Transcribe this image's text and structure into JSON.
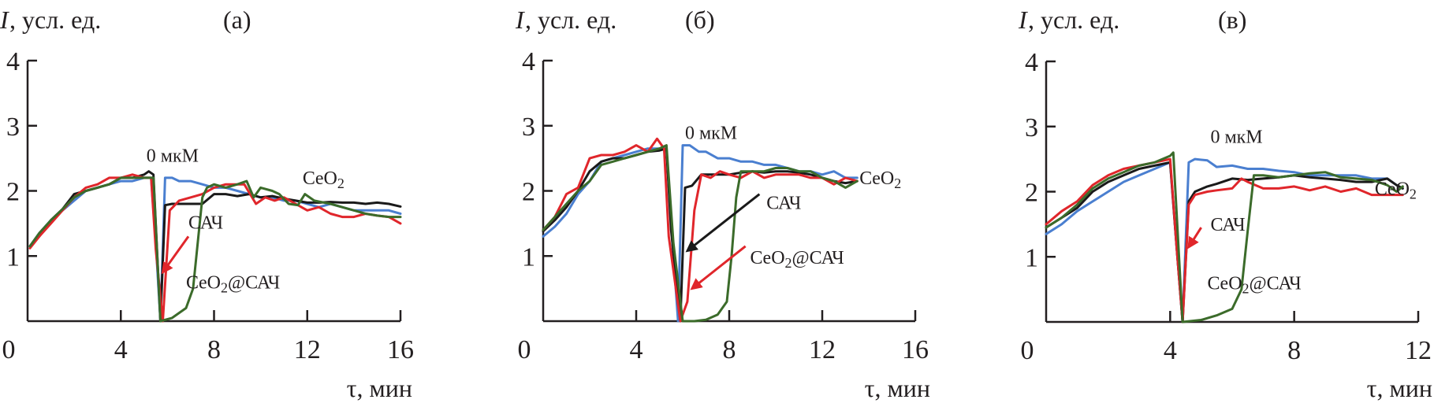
{
  "colors": {
    "blue": "#4a7fd0",
    "black": "#1a1a1a",
    "red": "#e0262b",
    "green": "#3b6b2a",
    "axis": "#231f20"
  },
  "chart_data": [
    {
      "type": "line",
      "panel_label": "(а)",
      "ylabel_italic": "I",
      "ylabel": ", усл. ед.",
      "xlabel": "τ, мин",
      "xlim": [
        0,
        16
      ],
      "ylim": [
        0,
        4
      ],
      "xticks": [
        0,
        4,
        8,
        12,
        16
      ],
      "yticks": [
        1,
        2,
        3,
        4
      ],
      "grid": false,
      "annotations": [
        {
          "text": "0 мкМ",
          "x": 5.1,
          "y": 2.45
        },
        {
          "text": "CeO",
          "sub": "2",
          "x": 11.8,
          "y": 2.1
        },
        {
          "text": "САЧ",
          "x": 6.9,
          "y": 1.42,
          "arrow": {
            "from": [
              6.9,
              1.3
            ],
            "to": [
              5.8,
              0.75
            ],
            "color": "red"
          }
        },
        {
          "text": "CeO",
          "sub": "2",
          "tail": "@САЧ",
          "x": 6.8,
          "y": 0.5
        }
      ],
      "series": [
        {
          "name": "0 мкМ",
          "color": "blue",
          "x": [
            0.1,
            0.5,
            1,
            1.5,
            2,
            2.5,
            3,
            3.5,
            4,
            4.5,
            5,
            5.3,
            5.5,
            5.7,
            5.9,
            6.2,
            6.5,
            7,
            7.5,
            8,
            8.5,
            9,
            9.5,
            10,
            10.5,
            11,
            11.5,
            12,
            12.5,
            13,
            13.5,
            14,
            14.5,
            15,
            15.5,
            16
          ],
          "y": [
            1.15,
            1.35,
            1.55,
            1.7,
            1.85,
            2.0,
            2.05,
            2.1,
            2.15,
            2.15,
            2.2,
            2.2,
            1.2,
            0.0,
            2.2,
            2.2,
            2.15,
            2.15,
            2.1,
            2.05,
            2.05,
            2.0,
            1.95,
            1.9,
            1.9,
            1.85,
            1.85,
            1.8,
            1.75,
            1.8,
            1.75,
            1.7,
            1.7,
            1.7,
            1.7,
            1.65
          ]
        },
        {
          "name": "CeO2",
          "color": "black",
          "x": [
            0.1,
            0.5,
            1,
            1.5,
            2,
            2.5,
            3,
            3.5,
            4,
            4.5,
            5,
            5.2,
            5.4,
            5.7,
            5.9,
            6.2,
            6.5,
            7,
            7.5,
            8,
            8.5,
            9,
            9.5,
            10,
            10.5,
            11,
            11.5,
            12,
            12.5,
            13,
            13.5,
            14,
            14.5,
            15,
            15.5,
            16
          ],
          "y": [
            1.15,
            1.3,
            1.55,
            1.72,
            1.95,
            2.0,
            2.05,
            2.1,
            2.2,
            2.2,
            2.25,
            2.3,
            2.25,
            0.0,
            1.78,
            1.8,
            1.8,
            1.8,
            1.8,
            1.95,
            1.95,
            1.92,
            1.95,
            1.9,
            1.92,
            1.88,
            1.85,
            1.82,
            1.82,
            1.83,
            1.82,
            1.82,
            1.8,
            1.82,
            1.8,
            1.76
          ]
        },
        {
          "name": "САЧ",
          "color": "red",
          "x": [
            0.1,
            0.5,
            1,
            1.5,
            2,
            2.5,
            3,
            3.5,
            4,
            4.5,
            5,
            5.3,
            5.5,
            5.8,
            6.1,
            6.5,
            7,
            7.5,
            8,
            8.5,
            9,
            9.3,
            9.8,
            10.2,
            10.6,
            11,
            11.5,
            12,
            12.5,
            13,
            13.5,
            14,
            14.5,
            15,
            15.5,
            16
          ],
          "y": [
            1.12,
            1.3,
            1.5,
            1.7,
            1.9,
            2.05,
            2.1,
            2.2,
            2.2,
            2.25,
            2.2,
            2.2,
            1.1,
            0.0,
            1.7,
            1.85,
            1.9,
            1.95,
            2.05,
            2.1,
            2.1,
            2.1,
            1.8,
            1.9,
            1.85,
            1.9,
            1.8,
            1.7,
            1.75,
            1.65,
            1.6,
            1.6,
            1.65,
            1.62,
            1.6,
            1.5
          ]
        },
        {
          "name": "CeO2@САЧ",
          "color": "green",
          "x": [
            0.1,
            0.5,
            1,
            1.5,
            2,
            2.5,
            3,
            3.5,
            4,
            4.5,
            5,
            5.4,
            5.7,
            6.2,
            6.8,
            7.1,
            7.3,
            7.5,
            7.7,
            8,
            8.5,
            9,
            9.4,
            9.7,
            10,
            10.5,
            10.8,
            11.2,
            11.6,
            11.9,
            12.3,
            13,
            13.5,
            14,
            14.5,
            15,
            15.5,
            16
          ],
          "y": [
            1.15,
            1.35,
            1.55,
            1.72,
            1.9,
            2.0,
            2.05,
            2.1,
            2.2,
            2.2,
            2.2,
            2.2,
            0.0,
            0.05,
            0.2,
            0.5,
            1.2,
            1.9,
            2.05,
            2.1,
            2.05,
            2.1,
            2.15,
            1.9,
            2.05,
            2.0,
            1.95,
            1.8,
            1.78,
            1.95,
            1.85,
            1.8,
            1.75,
            1.7,
            1.65,
            1.62,
            1.6,
            1.6
          ]
        }
      ]
    },
    {
      "type": "line",
      "panel_label": "(б)",
      "ylabel_italic": "I",
      "ylabel": ", усл. ед.",
      "xlabel": "τ, мин",
      "xlim": [
        0,
        16
      ],
      "ylim": [
        0,
        4
      ],
      "xticks": [
        0,
        4,
        8,
        12,
        16
      ],
      "yticks": [
        1,
        2,
        3,
        4
      ],
      "grid": false,
      "annotations": [
        {
          "text": "0 мкМ",
          "x": 6.1,
          "y": 2.8
        },
        {
          "text": "CeO",
          "sub": "2",
          "x": 13.6,
          "y": 2.1
        },
        {
          "text": "САЧ",
          "x": 9.6,
          "y": 1.72,
          "arrow": {
            "from": [
              9.3,
              1.95
            ],
            "to": [
              6.2,
              1.08
            ],
            "color": "black"
          }
        },
        {
          "text": "CeO",
          "sub": "2",
          "tail": "@САЧ",
          "x": 8.9,
          "y": 0.88,
          "arrow": {
            "from": [
              8.7,
              1.15
            ],
            "to": [
              6.4,
              0.5
            ],
            "color": "red"
          }
        }
      ],
      "series": [
        {
          "name": "0 мкМ",
          "color": "blue",
          "x": [
            0,
            0.5,
            1,
            1.5,
            2,
            2.5,
            3,
            3.5,
            4,
            4.5,
            5,
            5.3,
            5.5,
            5.8,
            6.0,
            6.3,
            6.7,
            7,
            7.5,
            8,
            8.5,
            9,
            9.5,
            10,
            10.5,
            11,
            11.5,
            12,
            12.5,
            13,
            13.5
          ],
          "y": [
            1.3,
            1.45,
            1.65,
            1.95,
            2.15,
            2.45,
            2.5,
            2.55,
            2.6,
            2.65,
            2.65,
            2.65,
            1.5,
            0.0,
            2.7,
            2.7,
            2.6,
            2.6,
            2.5,
            2.5,
            2.45,
            2.45,
            2.4,
            2.4,
            2.35,
            2.3,
            2.3,
            2.25,
            2.3,
            2.2,
            2.2
          ]
        },
        {
          "name": "CeO2",
          "color": "black",
          "x": [
            0,
            0.5,
            1,
            1.5,
            2,
            2.5,
            3,
            3.5,
            4,
            4.5,
            5,
            5.3,
            5.5,
            5.9,
            6.1,
            6.4,
            6.8,
            7,
            7.5,
            8,
            8.5,
            9,
            9.5,
            10,
            10.5,
            11,
            11.5,
            12,
            12.5,
            13,
            13.5
          ],
          "y": [
            1.38,
            1.55,
            1.75,
            2.0,
            2.3,
            2.45,
            2.5,
            2.5,
            2.55,
            2.6,
            2.62,
            2.65,
            1.4,
            0.0,
            2.05,
            2.08,
            2.25,
            2.25,
            2.25,
            2.25,
            2.28,
            2.3,
            2.28,
            2.3,
            2.3,
            2.28,
            2.25,
            2.2,
            2.15,
            2.12,
            2.15
          ]
        },
        {
          "name": "САЧ",
          "color": "red",
          "x": [
            0,
            0.5,
            1,
            1.5,
            2,
            2.5,
            3,
            3.5,
            4,
            4.5,
            4.9,
            5.2,
            5.4,
            5.9,
            6.2,
            6.5,
            6.8,
            7.2,
            7.6,
            8,
            8.5,
            9,
            9.5,
            10,
            10.5,
            11,
            11.5,
            12,
            12.5,
            13,
            13.5
          ],
          "y": [
            1.4,
            1.6,
            1.95,
            2.05,
            2.5,
            2.55,
            2.55,
            2.6,
            2.7,
            2.6,
            2.8,
            2.65,
            1.3,
            0.0,
            0.3,
            1.7,
            2.25,
            2.2,
            2.3,
            2.25,
            2.2,
            2.3,
            2.2,
            2.25,
            2.25,
            2.25,
            2.2,
            2.2,
            2.1,
            2.2,
            2.15
          ]
        },
        {
          "name": "CeO2@САЧ",
          "color": "green",
          "x": [
            0,
            0.5,
            1,
            1.5,
            2,
            2.5,
            3,
            3.5,
            4,
            4.5,
            5,
            5.3,
            5.6,
            6.0,
            6.5,
            7,
            7.5,
            7.9,
            8.1,
            8.3,
            8.5,
            9,
            9.5,
            10,
            10.5,
            11,
            11.5,
            12,
            12.5,
            13,
            13.5
          ],
          "y": [
            1.4,
            1.6,
            1.8,
            2.0,
            2.15,
            2.4,
            2.45,
            2.5,
            2.55,
            2.6,
            2.65,
            2.7,
            1.2,
            0.0,
            0.0,
            0.02,
            0.1,
            0.3,
            1.0,
            1.9,
            2.3,
            2.3,
            2.3,
            2.35,
            2.35,
            2.3,
            2.3,
            2.2,
            2.15,
            2.05,
            2.15
          ]
        }
      ]
    },
    {
      "type": "line",
      "panel_label": "(в)",
      "ylabel_italic": "I",
      "ylabel": ", усл. ед.",
      "xlabel": "τ, мин",
      "xlim": [
        0,
        12
      ],
      "ylim": [
        0,
        4
      ],
      "xticks": [
        0,
        4,
        8,
        12
      ],
      "yticks": [
        1,
        2,
        3,
        4
      ],
      "grid": false,
      "annotations": [
        {
          "text": "0 мкМ",
          "x": 5.3,
          "y": 2.75
        },
        {
          "text": "CeO",
          "sub": "2",
          "x": 10.6,
          "y": 1.95
        },
        {
          "text": "САЧ",
          "x": 5.3,
          "y": 1.4,
          "arrow": {
            "from": [
              5.0,
              1.45
            ],
            "to": [
              4.6,
              1.15
            ],
            "color": "red"
          }
        },
        {
          "text": "CeO",
          "sub": "2",
          "tail": "@САЧ",
          "x": 5.2,
          "y": 0.5
        }
      ],
      "series": [
        {
          "name": "0 мкМ",
          "color": "blue",
          "x": [
            0,
            0.5,
            1,
            1.5,
            2,
            2.5,
            3,
            3.5,
            4,
            4.2,
            4.4,
            4.6,
            4.8,
            5.2,
            5.5,
            6,
            6.5,
            7,
            7.5,
            8,
            8.5,
            9,
            9.5,
            10,
            10.5,
            11,
            11.3,
            11.5
          ],
          "y": [
            1.35,
            1.5,
            1.7,
            1.85,
            2.0,
            2.15,
            2.25,
            2.35,
            2.45,
            1.2,
            0.0,
            2.45,
            2.5,
            2.48,
            2.38,
            2.4,
            2.35,
            2.35,
            2.32,
            2.3,
            2.25,
            2.25,
            2.25,
            2.25,
            2.2,
            2.2,
            2.1,
            2.05
          ]
        },
        {
          "name": "CeO2",
          "color": "black",
          "x": [
            0,
            0.5,
            1,
            1.5,
            2,
            2.5,
            3,
            3.5,
            4,
            4.2,
            4.4,
            4.6,
            4.8,
            5.2,
            5.5,
            6,
            6.5,
            7,
            7.5,
            8,
            8.5,
            9,
            9.5,
            10,
            10.5,
            11,
            11.3,
            11.5
          ],
          "y": [
            1.45,
            1.6,
            1.75,
            2.0,
            2.15,
            2.25,
            2.35,
            2.4,
            2.45,
            1.2,
            0.0,
            1.85,
            2.0,
            2.08,
            2.12,
            2.2,
            2.18,
            2.2,
            2.22,
            2.25,
            2.22,
            2.2,
            2.18,
            2.15,
            2.15,
            2.2,
            2.1,
            2.05
          ]
        },
        {
          "name": "САЧ",
          "color": "red",
          "x": [
            0,
            0.5,
            1,
            1.5,
            2,
            2.5,
            3,
            3.5,
            4,
            4.2,
            4.4,
            4.6,
            4.8,
            5.2,
            5.5,
            6,
            6.3,
            6.5,
            7,
            7.5,
            8,
            8.5,
            9,
            9.5,
            10,
            10.5,
            11,
            11.5
          ],
          "y": [
            1.5,
            1.7,
            1.85,
            2.1,
            2.25,
            2.35,
            2.4,
            2.45,
            2.5,
            1.2,
            0.0,
            1.8,
            1.95,
            2.0,
            2.02,
            2.05,
            2.2,
            2.15,
            2.05,
            2.05,
            2.08,
            2.02,
            2.08,
            2.0,
            2.05,
            1.95,
            1.95,
            1.95
          ]
        },
        {
          "name": "CeO2@САЧ",
          "color": "green",
          "x": [
            0,
            0.5,
            1,
            1.5,
            2,
            2.5,
            3,
            3.5,
            4,
            4.1,
            4.4,
            5,
            5.5,
            6,
            6.3,
            6.5,
            6.7,
            7,
            7.5,
            8,
            8.5,
            9,
            9.5,
            10,
            10.5,
            11,
            11.3,
            11.5
          ],
          "y": [
            1.45,
            1.6,
            1.8,
            2.05,
            2.2,
            2.3,
            2.4,
            2.45,
            2.55,
            2.6,
            0.0,
            0.03,
            0.1,
            0.2,
            0.5,
            1.4,
            2.25,
            2.25,
            2.22,
            2.25,
            2.28,
            2.3,
            2.22,
            2.2,
            2.18,
            2.1,
            2.0,
            2.08
          ]
        }
      ]
    }
  ]
}
